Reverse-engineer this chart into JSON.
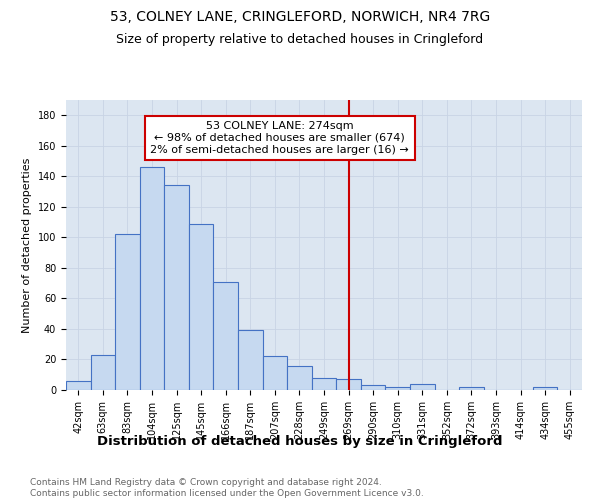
{
  "title": "53, COLNEY LANE, CRINGLEFORD, NORWICH, NR4 7RG",
  "subtitle": "Size of property relative to detached houses in Cringleford",
  "xlabel": "Distribution of detached houses by size in Cringleford",
  "ylabel": "Number of detached properties",
  "categories": [
    "42sqm",
    "63sqm",
    "83sqm",
    "104sqm",
    "125sqm",
    "145sqm",
    "166sqm",
    "187sqm",
    "207sqm",
    "228sqm",
    "249sqm",
    "269sqm",
    "290sqm",
    "310sqm",
    "331sqm",
    "352sqm",
    "372sqm",
    "393sqm",
    "414sqm",
    "434sqm",
    "455sqm"
  ],
  "bar_heights": [
    6,
    23,
    102,
    146,
    134,
    109,
    71,
    39,
    22,
    16,
    8,
    7,
    3,
    2,
    4,
    0,
    2,
    0,
    0,
    2,
    0
  ],
  "bar_color": "#c6d9f0",
  "bar_edge_color": "#4472c4",
  "vline_idx": 11,
  "vline_color": "#cc0000",
  "annotation_text": "53 COLNEY LANE: 274sqm\n← 98% of detached houses are smaller (674)\n2% of semi-detached houses are larger (16) →",
  "annotation_box_color": "#cc0000",
  "ylim": [
    0,
    190
  ],
  "yticks": [
    0,
    20,
    40,
    60,
    80,
    100,
    120,
    140,
    160,
    180
  ],
  "grid_color": "#c8d4e4",
  "bg_color": "#dce6f1",
  "footer": "Contains HM Land Registry data © Crown copyright and database right 2024.\nContains public sector information licensed under the Open Government Licence v3.0.",
  "title_fontsize": 10,
  "subtitle_fontsize": 9,
  "xlabel_fontsize": 9.5,
  "ylabel_fontsize": 8,
  "tick_fontsize": 7,
  "footer_fontsize": 6.5,
  "ann_fontsize": 8
}
